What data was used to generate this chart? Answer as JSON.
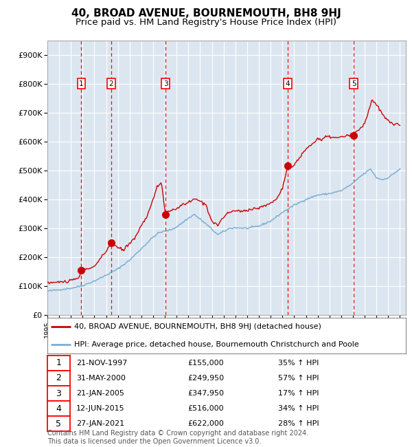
{
  "title": "40, BROAD AVENUE, BOURNEMOUTH, BH8 9HJ",
  "subtitle": "Price paid vs. HM Land Registry's House Price Index (HPI)",
  "ylim": [
    0,
    950000
  ],
  "yticks": [
    0,
    100000,
    200000,
    300000,
    400000,
    500000,
    600000,
    700000,
    800000,
    900000
  ],
  "ytick_labels": [
    "£0",
    "£100K",
    "£200K",
    "£300K",
    "£400K",
    "£500K",
    "£600K",
    "£700K",
    "£800K",
    "£900K"
  ],
  "xlim_start": 1995.0,
  "xlim_end": 2025.5,
  "background_color": "#dce6f1",
  "grid_color": "#ffffff",
  "hpi_color": "#7bafd4",
  "price_color": "#cc0000",
  "sales": [
    {
      "num": 1,
      "date": "21-NOV-1997",
      "year": 1997.89,
      "price": 155000,
      "pct": "35%",
      "dir": "↑"
    },
    {
      "num": 2,
      "date": "31-MAY-2000",
      "year": 2000.41,
      "price": 249950,
      "pct": "57%",
      "dir": "↑"
    },
    {
      "num": 3,
      "date": "21-JAN-2005",
      "year": 2005.05,
      "price": 347950,
      "pct": "17%",
      "dir": "↑"
    },
    {
      "num": 4,
      "date": "12-JUN-2015",
      "year": 2015.44,
      "price": 516000,
      "pct": "34%",
      "dir": "↑"
    },
    {
      "num": 5,
      "date": "27-JAN-2021",
      "year": 2021.07,
      "price": 622000,
      "pct": "28%",
      "dir": "↑"
    }
  ],
  "legend_label_price": "40, BROAD AVENUE, BOURNEMOUTH, BH8 9HJ (detached house)",
  "legend_label_hpi": "HPI: Average price, detached house, Bournemouth Christchurch and Poole",
  "footer": "Contains HM Land Registry data © Crown copyright and database right 2024.\nThis data is licensed under the Open Government Licence v3.0.",
  "title_fontsize": 11,
  "subtitle_fontsize": 9.5,
  "tick_fontsize": 8,
  "label_fontsize": 8,
  "footer_fontsize": 7
}
